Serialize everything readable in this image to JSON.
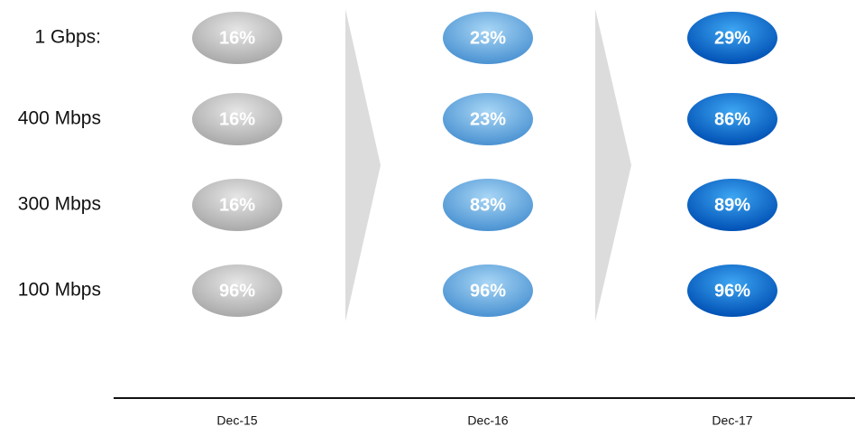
{
  "columns": [
    "Dec-15",
    "Dec-16",
    "Dec-17"
  ],
  "rows": [
    {
      "label": "1 Gbps:",
      "cells": [
        "16%",
        "23%",
        "29%"
      ]
    },
    {
      "label": "400 Mbps",
      "cells": [
        "16%",
        "23%",
        "86%"
      ]
    },
    {
      "label": "300 Mbps",
      "cells": [
        "16%",
        "83%",
        "89%"
      ]
    },
    {
      "label": "100 Mbps",
      "cells": [
        "96%",
        "96%",
        "96%"
      ]
    }
  ]
}
